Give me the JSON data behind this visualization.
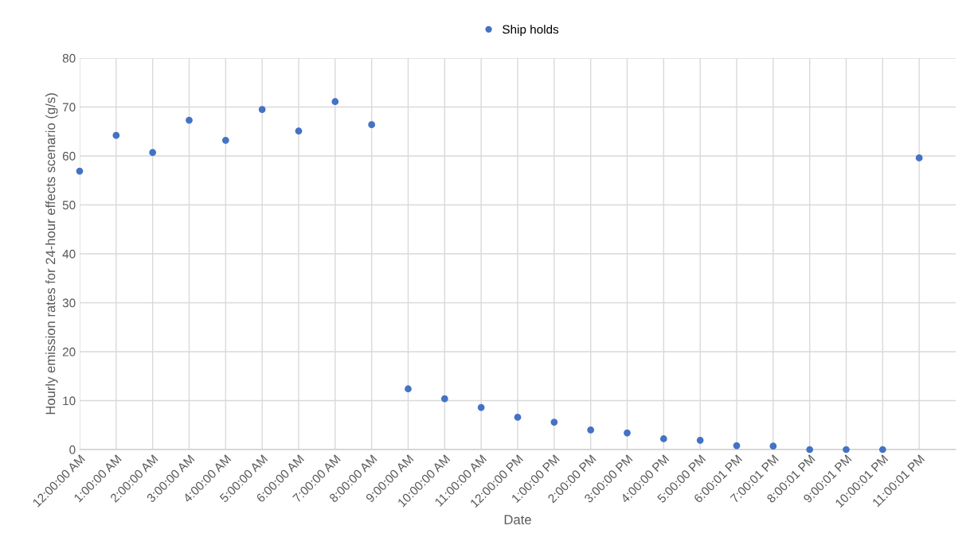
{
  "chart_data": {
    "type": "scatter",
    "xlabel": "Date",
    "ylabel": "Hourly emission rates for 24-hour effects scenario (g/s)",
    "categories": [
      "12:00:00 AM",
      "1:00:00 AM",
      "2:00:00 AM",
      "3:00:00 AM",
      "4:00:00 AM",
      "5:00:00 AM",
      "6:00:00 AM",
      "7:00:00 AM",
      "8:00:00 AM",
      "9:00:00 AM",
      "10:00:00 AM",
      "11:00:00 AM",
      "12:00:00 PM",
      "1:00:00 PM",
      "2:00:00 PM",
      "3:00:00 PM",
      "4:00:00 PM",
      "5:00:00 PM",
      "6:00:01 PM",
      "7:00:01 PM",
      "8:00:01 PM",
      "9:00:01 PM",
      "10:00:01 PM",
      "11:00:01 PM"
    ],
    "series": [
      {
        "name": "Ship holds",
        "color": "#4472c4",
        "values": [
          56.9,
          64.2,
          60.7,
          67.3,
          63.2,
          69.5,
          65.1,
          71.1,
          66.4,
          12.4,
          10.4,
          8.6,
          6.6,
          5.6,
          4.0,
          3.4,
          2.2,
          1.9,
          0.8,
          0.7,
          0,
          0,
          0,
          59.6
        ]
      }
    ],
    "ylim": [
      0,
      80
    ],
    "yticks": [
      0,
      10,
      20,
      30,
      40,
      50,
      60,
      70,
      80
    ],
    "grid": true,
    "legend": "top",
    "marker": "circle"
  }
}
